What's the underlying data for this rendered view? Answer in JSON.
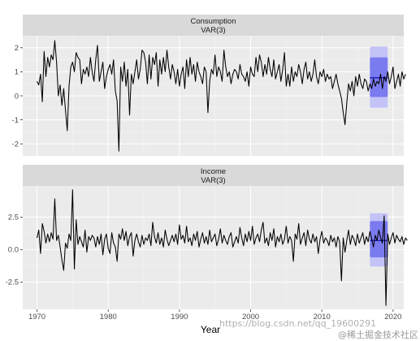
{
  "chart_data": {
    "type": "line",
    "title": "",
    "xlabel": "Year",
    "x_ticks": [
      1970,
      1980,
      1990,
      2000,
      2010,
      2020
    ],
    "x_range": [
      1968,
      2021.5
    ],
    "data_start": 1970.0,
    "data_step": 0.25,
    "forecast_x": [
      2016.75,
      2019.25
    ],
    "colors": {
      "panel_bg": "#ebebeb",
      "strip_bg": "#d9d9d9",
      "grid_major": "#ffffff",
      "line": "#000000",
      "forecast_line": "#0000aa",
      "pi80": "#7b7bf0",
      "pi95": "#c3c3f8"
    },
    "panels": [
      {
        "strip_title": "Consumption",
        "strip_subtitle": "VAR(3)",
        "y_ticks": [
          2,
          1,
          0,
          -1,
          -2
        ],
        "y_tick_labels": [
          "2",
          "1",
          "0",
          "-1",
          "-2"
        ],
        "ylim": [
          -2.5,
          2.5
        ],
        "forecast": {
          "mean": 0.75,
          "lo80": -0.05,
          "hi80": 1.6,
          "lo95": -0.5,
          "hi95": 2.05
        },
        "values": [
          0.6,
          0.45,
          0.9,
          -0.25,
          1.85,
          0.8,
          1.6,
          1.2,
          1.7,
          1.5,
          2.3,
          1.4,
          0.0,
          0.45,
          -0.4,
          0.3,
          -0.6,
          -1.45,
          0.4,
          1.2,
          1.4,
          1.0,
          1.8,
          1.6,
          1.5,
          0.5,
          1.1,
          0.9,
          1.2,
          0.8,
          1.6,
          1.0,
          0.6,
          1.5,
          2.1,
          0.6,
          1.0,
          1.4,
          0.3,
          0.8,
          1.1,
          1.3,
          0.9,
          1.5,
          0.2,
          -0.2,
          -2.3,
          1.2,
          0.6,
          1.4,
          0.4,
          1.1,
          -0.8,
          0.9,
          0.5,
          1.0,
          1.5,
          0.7,
          1.1,
          1.9,
          1.8,
          1.4,
          0.5,
          1.7,
          0.7,
          1.6,
          1.3,
          1.8,
          0.4,
          1.5,
          0.9,
          1.6,
          1.0,
          1.9,
          1.2,
          0.7,
          1.3,
          1.0,
          0.5,
          1.1,
          0.4,
          0.9,
          1.2,
          0.3,
          1.5,
          0.8,
          1.6,
          0.9,
          1.3,
          0.6,
          1.4,
          1.0,
          0.8,
          0.5,
          1.2,
          1.0,
          -0.7,
          0.6,
          1.1,
          0.9,
          1.7,
          0.8,
          1.2,
          1.0,
          0.6,
          1.9,
          1.2,
          0.8,
          1.0,
          0.5,
          0.9,
          1.1,
          1.0,
          0.7,
          1.3,
          0.9,
          0.8,
          0.6,
          1.0,
          0.4,
          1.2,
          0.9,
          0.8,
          1.6,
          1.0,
          1.7,
          1.4,
          0.8,
          1.3,
          0.9,
          1.6,
          1.1,
          0.8,
          1.5,
          0.7,
          1.0,
          1.3,
          0.6,
          1.1,
          1.8,
          0.4,
          0.9,
          0.4,
          1.2,
          0.6,
          1.0,
          0.8,
          1.3,
          1.0,
          0.5,
          1.1,
          1.4,
          0.7,
          1.0,
          0.6,
          0.9,
          1.5,
          0.8,
          0.5,
          1.0,
          0.8,
          1.1,
          0.6,
          0.9,
          0.7,
          0.8,
          0.3,
          0.6,
          0.9,
          0.5,
          0.2,
          -0.1,
          -0.7,
          -1.2,
          -0.3,
          0.5,
          0.2,
          0.6,
          0.0,
          0.8,
          0.4,
          0.9,
          0.5,
          0.3,
          0.7,
          0.6,
          0.2,
          0.5,
          0.3,
          0.7,
          0.4,
          0.6,
          0.5,
          0.9,
          0.3,
          0.8,
          0.6,
          1.0,
          0.5,
          0.8,
          1.2,
          0.3,
          0.6,
          0.9,
          0.4,
          1.0,
          0.7,
          0.9
        ]
      },
      {
        "strip_title": "Income",
        "strip_subtitle": "VAR(3)",
        "y_ticks": [
          2.5,
          0.0,
          -2.5
        ],
        "y_tick_labels": [
          "2.5",
          "0.0",
          "-2.5"
        ],
        "ylim": [
          -4.6,
          4.9
        ],
        "forecast": {
          "mean": 0.7,
          "lo80": -0.6,
          "hi80": 2.2,
          "lo95": -1.3,
          "hi95": 2.8
        },
        "values": [
          0.9,
          1.5,
          -0.3,
          2.0,
          1.4,
          0.5,
          1.2,
          0.6,
          1.3,
          0.8,
          3.9,
          0.7,
          1.1,
          0.2,
          -0.8,
          -1.6,
          0.5,
          0.1,
          1.2,
          0.7,
          4.6,
          -1.5,
          2.3,
          0.4,
          1.0,
          0.6,
          0.2,
          1.5,
          -0.2,
          1.0,
          0.7,
          1.1,
          0.9,
          0.2,
          1.0,
          0.4,
          1.2,
          -0.4,
          0.8,
          1.2,
          0.1,
          -0.3,
          1.3,
          0.5,
          0.2,
          -0.9,
          1.2,
          0.8,
          1.6,
          0.7,
          1.4,
          0.3,
          1.0,
          1.3,
          -0.5,
          0.7,
          1.2,
          0.6,
          0.2,
          1.1,
          0.4,
          0.9,
          0.7,
          1.2,
          0.3,
          2.1,
          1.0,
          0.5,
          1.3,
          0.4,
          0.9,
          0.2,
          1.5,
          0.8,
          0.3,
          0.7,
          1.1,
          0.6,
          1.2,
          0.4,
          1.9,
          0.8,
          1.1,
          0.5,
          1.8,
          0.6,
          0.9,
          0.3,
          1.2,
          0.7,
          1.4,
          0.2,
          0.8,
          1.3,
          0.5,
          1.0,
          0.4,
          1.5,
          0.6,
          0.9,
          1.2,
          0.3,
          0.8,
          1.6,
          0.5,
          1.1,
          0.7,
          0.4,
          1.0,
          1.3,
          0.2,
          0.6,
          1.0,
          0.5,
          1.7,
          0.9,
          0.3,
          1.2,
          0.6,
          1.4,
          0.7,
          1.8,
          0.4,
          0.9,
          1.2,
          0.6,
          1.5,
          2.1,
          0.5,
          0.9,
          0.3,
          1.3,
          0.7,
          1.6,
          0.2,
          1.0,
          0.6,
          1.2,
          0.4,
          0.8,
          1.8,
          0.5,
          1.0,
          0.7,
          -0.9,
          1.2,
          0.8,
          2.0,
          0.4,
          0.9,
          1.3,
          0.3,
          1.5,
          0.8,
          0.5,
          1.2,
          0.6,
          1.0,
          -0.3,
          0.8,
          1.4,
          0.5,
          0.9,
          0.7,
          0.3,
          1.1,
          0.6,
          0.9,
          0.2,
          1.0,
          0.6,
          -2.4,
          0.9,
          -0.2,
          0.7,
          1.5,
          0.4,
          1.1,
          0.8,
          0.3,
          1.2,
          0.5,
          0.9,
          1.3,
          0.4,
          1.0,
          0.6,
          1.4,
          0.8,
          0.2,
          1.1,
          0.7,
          1.5,
          0.9,
          0.5,
          2.6,
          -4.3,
          1.2,
          0.4,
          0.9,
          1.3,
          0.5,
          1.1,
          0.8,
          0.6,
          1.0,
          0.4,
          0.9,
          0.7
        ]
      }
    ]
  },
  "watermark": {
    "url_text": "https://blog.csdn.net/qq_19600291",
    "brand_text": "@稀土掘金技术社区"
  }
}
